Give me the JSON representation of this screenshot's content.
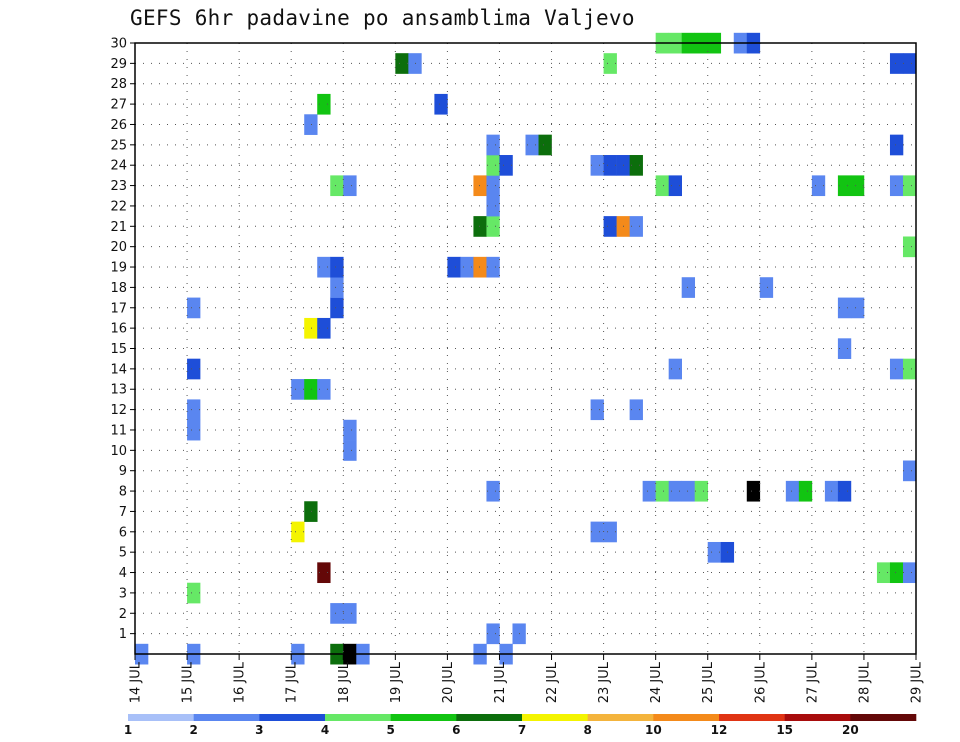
{
  "title": "GEFS 6hr padavine po ansamblima Valjevo",
  "chart_data": {
    "type": "heatmap",
    "title": "GEFS 6hr padavine po ansamblima Valjevo",
    "xlabel": "",
    "ylabel": "",
    "x_ticks": [
      "14 JUL",
      "15 JUL",
      "16 JUL",
      "17 JUL",
      "18 JUL",
      "19 JUL",
      "20 JUL",
      "21 JUL",
      "22 JUL",
      "23 JUL",
      "24 JUL",
      "25 JUL",
      "26 JUL",
      "27 JUL",
      "28 JUL",
      "29 JUL"
    ],
    "y_ticks": [
      1,
      2,
      3,
      4,
      5,
      6,
      7,
      8,
      9,
      10,
      11,
      12,
      13,
      14,
      15,
      16,
      17,
      18,
      19,
      20,
      21,
      22,
      23,
      24,
      25,
      26,
      27,
      28,
      29,
      30
    ],
    "xlim": [
      0,
      60
    ],
    "ylim": [
      0,
      30
    ],
    "grid": true,
    "legend_placement": "bottom colorbar",
    "colorbar": {
      "labels": [
        "1",
        "2",
        "3",
        "4",
        "5",
        "6",
        "7",
        "8",
        "10",
        "12",
        "15",
        "20"
      ],
      "colors": [
        "#a8c0f8",
        "#5a86f0",
        "#1e4ed8",
        "#66e866",
        "#12c412",
        "#0c6e0c",
        "#f4f400",
        "#f4b43c",
        "#f48a1a",
        "#e03414",
        "#a80c0c",
        "#640808"
      ]
    },
    "cells": [
      [
        0,
        0,
        1
      ],
      [
        4,
        0,
        1
      ],
      [
        12,
        0,
        1
      ],
      [
        15,
        0,
        5
      ],
      [
        16,
        0,
        12
      ],
      [
        17,
        0,
        1
      ],
      [
        26,
        0,
        1
      ],
      [
        28,
        0,
        1
      ],
      [
        27,
        1,
        1
      ],
      [
        29,
        1,
        1
      ],
      [
        15,
        2,
        1
      ],
      [
        16,
        2,
        1
      ],
      [
        4,
        3,
        3
      ],
      [
        14,
        4,
        11
      ],
      [
        57,
        4,
        3
      ],
      [
        58,
        4,
        4
      ],
      [
        59,
        4,
        1
      ],
      [
        44,
        5,
        1
      ],
      [
        45,
        5,
        2
      ],
      [
        12,
        6,
        6
      ],
      [
        35,
        6,
        1
      ],
      [
        36,
        6,
        1
      ],
      [
        13,
        7,
        5
      ],
      [
        27,
        8,
        1
      ],
      [
        39,
        8,
        1
      ],
      [
        40,
        8,
        3
      ],
      [
        41,
        8,
        1
      ],
      [
        42,
        8,
        1
      ],
      [
        43,
        8,
        3
      ],
      [
        47,
        8,
        12
      ],
      [
        50,
        8,
        1
      ],
      [
        51,
        8,
        4
      ],
      [
        53,
        8,
        1
      ],
      [
        54,
        8,
        2
      ],
      [
        59,
        9,
        1
      ],
      [
        16,
        10,
        1
      ],
      [
        16,
        11,
        1
      ],
      [
        4,
        11,
        1
      ],
      [
        4,
        12,
        1
      ],
      [
        35,
        12,
        1
      ],
      [
        38,
        12,
        1
      ],
      [
        12,
        13,
        1
      ],
      [
        13,
        13,
        4
      ],
      [
        14,
        13,
        1
      ],
      [
        4,
        14,
        2
      ],
      [
        41,
        14,
        1
      ],
      [
        58,
        14,
        1
      ],
      [
        59,
        14,
        3
      ],
      [
        54,
        15,
        1
      ],
      [
        13,
        16,
        6
      ],
      [
        14,
        16,
        2
      ],
      [
        4,
        17,
        1
      ],
      [
        15,
        17,
        2
      ],
      [
        54,
        17,
        1
      ],
      [
        55,
        17,
        1
      ],
      [
        15,
        18,
        1
      ],
      [
        42,
        18,
        1
      ],
      [
        48,
        18,
        1
      ],
      [
        14,
        19,
        1
      ],
      [
        15,
        19,
        2
      ],
      [
        24,
        19,
        2
      ],
      [
        25,
        19,
        1
      ],
      [
        26,
        19,
        8
      ],
      [
        27,
        19,
        1
      ],
      [
        59,
        20,
        3
      ],
      [
        26,
        21,
        5
      ],
      [
        27,
        21,
        3
      ],
      [
        36,
        21,
        2
      ],
      [
        37,
        21,
        8
      ],
      [
        38,
        21,
        1
      ],
      [
        27,
        22,
        1
      ],
      [
        15,
        23,
        3
      ],
      [
        16,
        23,
        1
      ],
      [
        26,
        23,
        8
      ],
      [
        27,
        23,
        1
      ],
      [
        40,
        23,
        3
      ],
      [
        41,
        23,
        2
      ],
      [
        52,
        23,
        1
      ],
      [
        54,
        23,
        4
      ],
      [
        55,
        23,
        4
      ],
      [
        58,
        23,
        1
      ],
      [
        59,
        23,
        3
      ],
      [
        27,
        24,
        3
      ],
      [
        28,
        24,
        2
      ],
      [
        35,
        24,
        1
      ],
      [
        36,
        24,
        2
      ],
      [
        37,
        24,
        2
      ],
      [
        38,
        24,
        5
      ],
      [
        27,
        25,
        1
      ],
      [
        30,
        25,
        1
      ],
      [
        31,
        25,
        5
      ],
      [
        58,
        25,
        2
      ],
      [
        13,
        26,
        1
      ],
      [
        14,
        27,
        4
      ],
      [
        23,
        27,
        2
      ],
      [
        20,
        29,
        5
      ],
      [
        21,
        29,
        1
      ],
      [
        36,
        29,
        3
      ],
      [
        58,
        29,
        2
      ],
      [
        59,
        29,
        2
      ],
      [
        40,
        30,
        3
      ],
      [
        41,
        30,
        3
      ],
      [
        42,
        30,
        4
      ],
      [
        43,
        30,
        4
      ],
      [
        44,
        30,
        4
      ],
      [
        46,
        30,
        1
      ],
      [
        47,
        30,
        2
      ]
    ]
  }
}
